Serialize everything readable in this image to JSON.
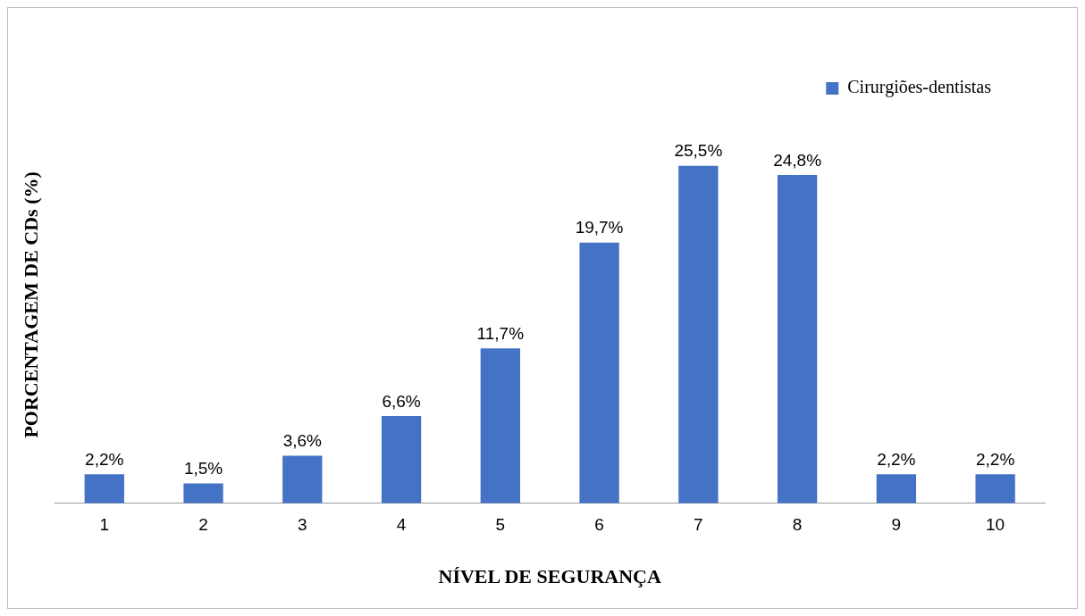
{
  "chart_data": {
    "type": "bar",
    "xlabel": "NÍVEL DE SEGURANÇA",
    "ylabel": "PORCENTAGEM DE CDs (%)",
    "categories": [
      "1",
      "2",
      "3",
      "4",
      "5",
      "6",
      "7",
      "8",
      "9",
      "10"
    ],
    "series": [
      {
        "name": "Cirurgiões-dentistas",
        "color": "#4472c4",
        "values": [
          2.2,
          1.5,
          3.6,
          6.6,
          11.7,
          19.7,
          25.5,
          24.8,
          2.2,
          2.2
        ],
        "value_labels": [
          "2,2%",
          "1,5%",
          "3,6%",
          "6,6%",
          "11,7%",
          "19,7%",
          "25,5%",
          "24,8%",
          "2,2%",
          "2,2%"
        ]
      }
    ],
    "legend": "top right",
    "grid": false,
    "tick_labels": "x"
  }
}
